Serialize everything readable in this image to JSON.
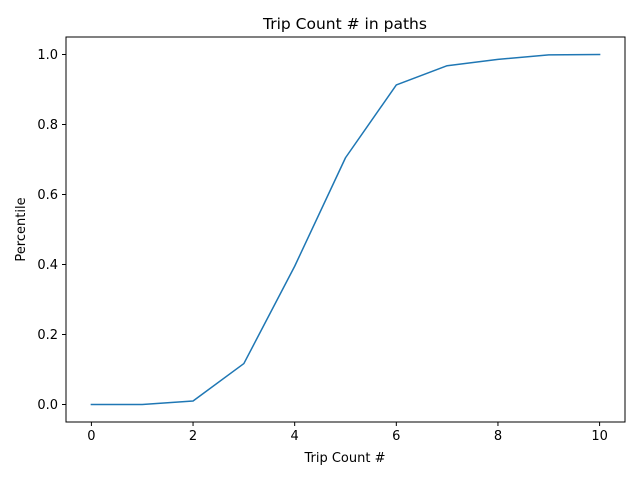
{
  "chart_data": {
    "type": "line",
    "title": "Trip Count # in paths",
    "xlabel": "Trip Count #",
    "ylabel": "Percentile",
    "xlim": [
      -0.5,
      10.5
    ],
    "ylim": [
      -0.05,
      1.05
    ],
    "xticks": [
      0,
      2,
      4,
      6,
      8,
      10
    ],
    "xtick_labels": [
      "0",
      "2",
      "4",
      "6",
      "8",
      "10"
    ],
    "yticks": [
      0.0,
      0.2,
      0.4,
      0.6,
      0.8,
      1.0
    ],
    "ytick_labels": [
      "0.0",
      "0.2",
      "0.4",
      "0.6",
      "0.8",
      "1.0"
    ],
    "grid": false,
    "series": [
      {
        "color": "#1f77b4",
        "x": [
          0,
          1,
          2,
          3,
          4,
          5,
          6,
          7,
          8,
          9,
          10
        ],
        "y": [
          0.0,
          0.0,
          0.01,
          0.117,
          0.395,
          0.705,
          0.913,
          0.968,
          0.986,
          0.999,
          1.0
        ]
      }
    ]
  }
}
